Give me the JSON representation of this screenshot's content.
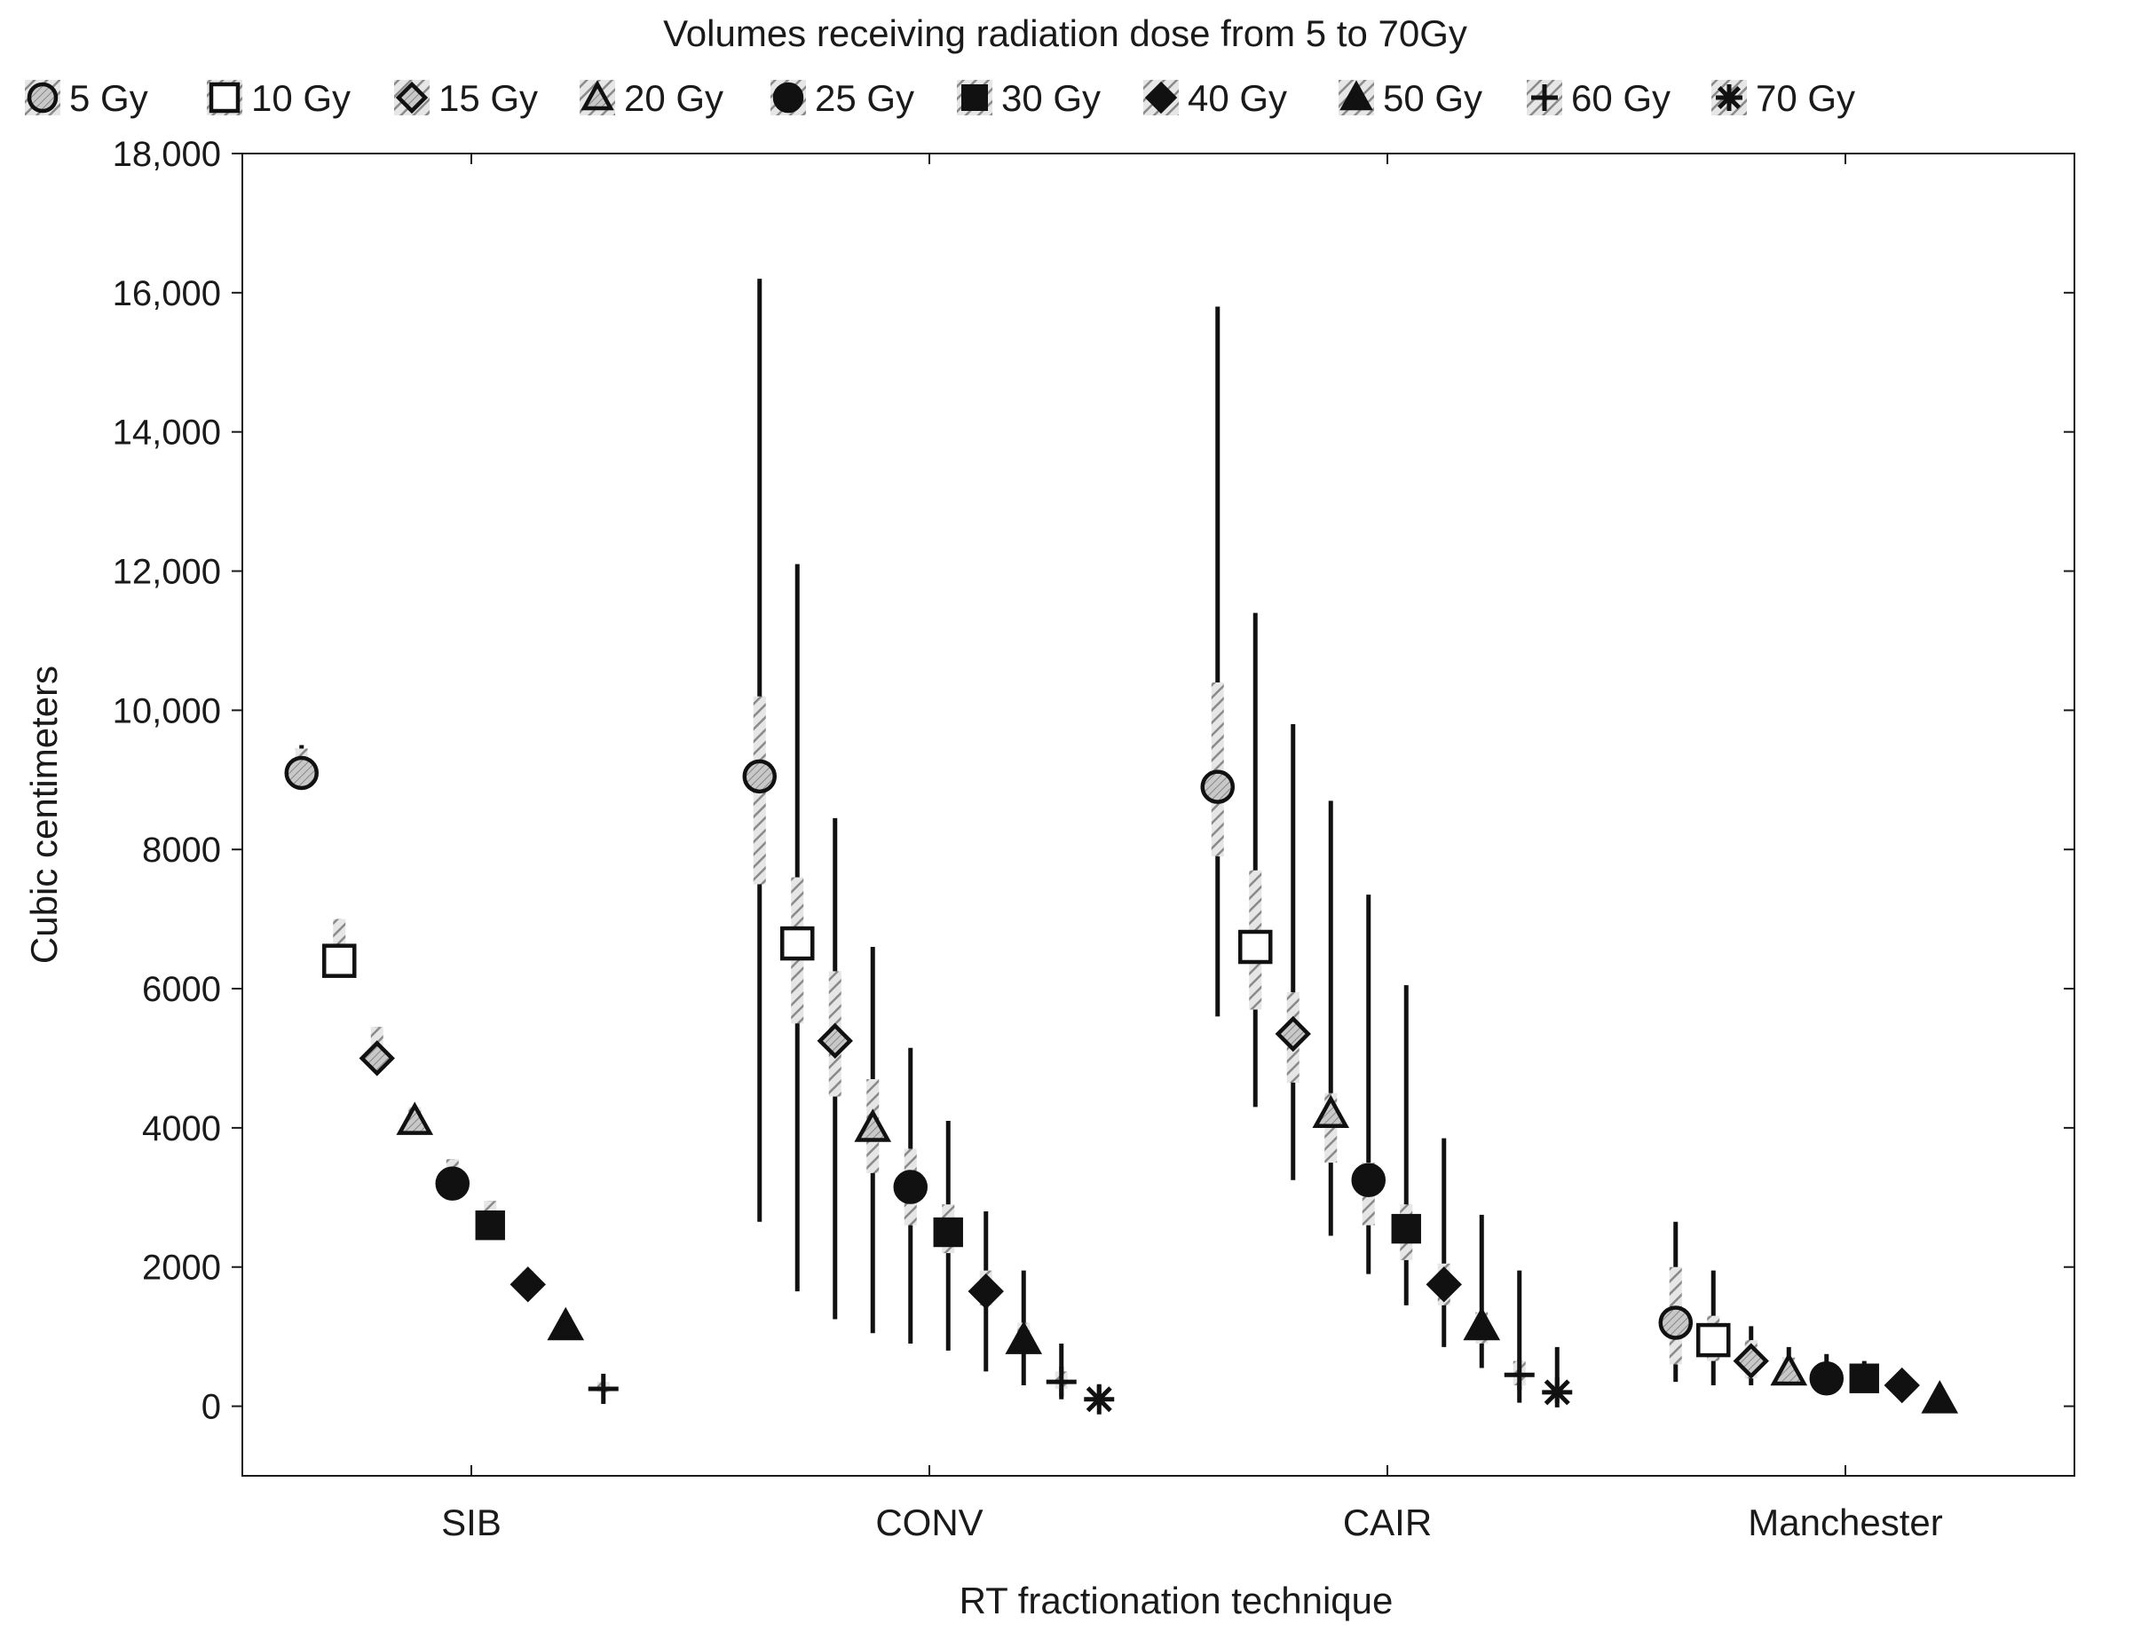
{
  "chart_data": {
    "type": "scatter",
    "title": "Volumes receiving radiation dose from 5 to 70Gy",
    "xlabel": "RT fractionation technique",
    "ylabel": "Cubic centimeters",
    "categories": [
      "SIB",
      "CONV",
      "CAIR",
      "Manchester"
    ],
    "ylim": [
      -1000,
      18000
    ],
    "yticks": [
      0,
      2000,
      4000,
      6000,
      8000,
      10000,
      12000,
      14000,
      16000,
      18000
    ],
    "ytick_labels": [
      "0",
      "2000",
      "4000",
      "6000",
      "8000",
      "10,000",
      "12,000",
      "14,000",
      "16,000",
      "18,000"
    ],
    "legend_position": "top",
    "series": [
      {
        "name": "5 Gy",
        "marker": "circle-gray",
        "values": [
          9100,
          9050,
          8900,
          1200
        ],
        "box_low": [
          9000,
          7500,
          7900,
          600
        ],
        "box_high": [
          9450,
          10200,
          10400,
          2000
        ],
        "whisker_low": [
          9000,
          2650,
          5600,
          350
        ],
        "whisker_high": [
          9500,
          16200,
          15800,
          2650
        ]
      },
      {
        "name": "10 Gy",
        "marker": "square-open",
        "values": [
          6400,
          6650,
          6600,
          950
        ],
        "box_low": [
          6250,
          5500,
          5700,
          650
        ],
        "box_high": [
          7000,
          7600,
          7700,
          1300
        ],
        "whisker_low": [
          6250,
          1650,
          4300,
          300
        ],
        "whisker_high": [
          7000,
          12100,
          11400,
          1950
        ]
      },
      {
        "name": "15 Gy",
        "marker": "diamond-gray",
        "values": [
          5000,
          5250,
          5350,
          650
        ],
        "box_low": [
          4950,
          4450,
          4650,
          400
        ],
        "box_high": [
          5450,
          6250,
          5950,
          950
        ],
        "whisker_low": [
          4950,
          1250,
          3250,
          300
        ],
        "whisker_high": [
          5450,
          8450,
          9800,
          1150
        ]
      },
      {
        "name": "20 Gy",
        "marker": "triangle-gray",
        "values": [
          4100,
          4000,
          4200,
          500
        ],
        "box_low": [
          4050,
          3350,
          3500,
          350
        ],
        "box_high": [
          4300,
          4700,
          4500,
          700
        ],
        "whisker_low": [
          4050,
          1050,
          2450,
          300
        ],
        "whisker_high": [
          4300,
          6600,
          8700,
          850
        ]
      },
      {
        "name": "25 Gy",
        "marker": "circle-filled",
        "values": [
          3200,
          3150,
          3250,
          400
        ],
        "box_low": [
          3150,
          2600,
          2600,
          300
        ],
        "box_high": [
          3550,
          3700,
          3500,
          600
        ],
        "whisker_low": [
          3150,
          900,
          1900,
          250
        ],
        "whisker_high": [
          3550,
          5150,
          7350,
          750
        ]
      },
      {
        "name": "30 Gy",
        "marker": "square-filled",
        "values": [
          2600,
          2500,
          2550,
          400
        ],
        "box_low": [
          2550,
          2200,
          2100,
          300
        ],
        "box_high": [
          2950,
          2900,
          2900,
          550
        ],
        "whisker_low": [
          2550,
          800,
          1450,
          250
        ],
        "whisker_high": [
          2950,
          4100,
          6050,
          650
        ]
      },
      {
        "name": "40 Gy",
        "marker": "diamond-filled",
        "values": [
          1750,
          1650,
          1750,
          300
        ],
        "box_low": [
          1700,
          1450,
          1450,
          250
        ],
        "box_high": [
          1950,
          1950,
          2050,
          350
        ],
        "whisker_low": [
          1700,
          500,
          850,
          200
        ],
        "whisker_high": [
          1950,
          2800,
          3850,
          400
        ]
      },
      {
        "name": "50 Gy",
        "marker": "triangle-filled",
        "values": [
          1150,
          950,
          1150,
          100
        ],
        "box_low": [
          1100,
          800,
          900,
          50
        ],
        "box_high": [
          1300,
          1200,
          1350,
          150
        ],
        "whisker_low": [
          1100,
          300,
          550,
          50
        ],
        "whisker_high": [
          1300,
          1950,
          2750,
          200
        ]
      },
      {
        "name": "60 Gy",
        "marker": "plus",
        "values": [
          250,
          350,
          450,
          null
        ],
        "box_low": [
          200,
          250,
          300,
          null
        ],
        "box_high": [
          350,
          500,
          650,
          null
        ],
        "whisker_low": [
          200,
          100,
          50,
          null
        ],
        "whisker_high": [
          350,
          900,
          1950,
          null
        ]
      },
      {
        "name": "70 Gy",
        "marker": "asterisk",
        "values": [
          null,
          100,
          200,
          null
        ],
        "box_low": [
          null,
          50,
          100,
          null
        ],
        "box_high": [
          null,
          150,
          300,
          null
        ],
        "whisker_low": [
          null,
          0,
          50,
          null
        ],
        "whisker_high": [
          null,
          300,
          850,
          null
        ]
      }
    ]
  }
}
